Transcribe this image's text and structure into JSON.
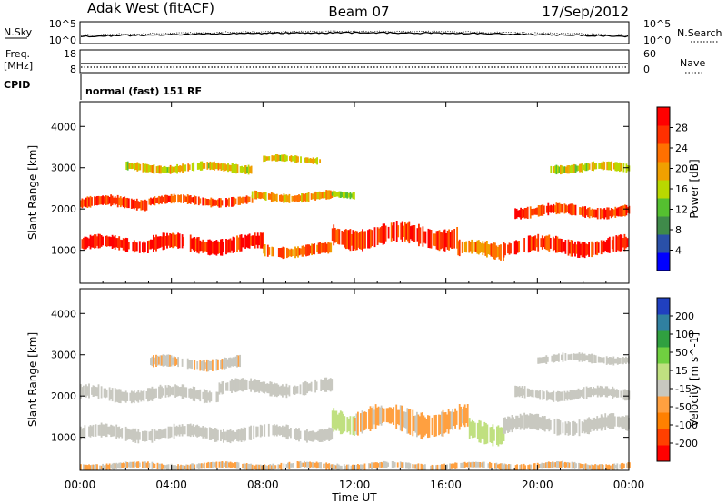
{
  "header": {
    "station": "Adak West (fitACF)",
    "beam": "Beam 07",
    "date": "17/Sep/2012"
  },
  "top_panels": {
    "nsky_label": "N.Sky",
    "nsky_ticks": [
      "10^5",
      "10^0"
    ],
    "nsearch_label": "N.Search",
    "freq_label": "Freq.",
    "freq_unit": "[MHz]",
    "freq_ticks": [
      "18",
      "8"
    ],
    "nave_label": "Nave",
    "nave_ticks": [
      "60",
      "0"
    ],
    "cpid_label": "CPID",
    "cpid_value": "normal (fast) 151 RF"
  },
  "colors": {
    "power_scale": [
      "#0000ff",
      "#2a50a8",
      "#3f8a4a",
      "#55c030",
      "#b9d800",
      "#f0a000",
      "#ff7000",
      "#ff3000",
      "#ff0000"
    ],
    "velocity_scale": [
      "#ff0000",
      "#ff4000",
      "#ff8000",
      "#ffa040",
      "#c8c8c0",
      "#c0e080",
      "#70d040",
      "#30a040",
      "#3080a0",
      "#2040c0"
    ],
    "ground_scatter": "#c8c8c0"
  },
  "chart_data": [
    {
      "type": "heatmap",
      "title": "Power",
      "xlabel": "Time UT",
      "ylabel": "Slant Range [km]",
      "x_ticks": [
        "00:00",
        "04:00",
        "08:00",
        "12:00",
        "16:00",
        "20:00",
        "00:00"
      ],
      "xlim": [
        0,
        24
      ],
      "y_ticks": [
        "1000",
        "2000",
        "3000",
        "4000"
      ],
      "ylim": [
        200,
        4600
      ],
      "colorbar": {
        "label": "Power [dB]",
        "ticks": [
          "4",
          "8",
          "12",
          "16",
          "20",
          "24",
          "28"
        ],
        "range": [
          0,
          32
        ]
      },
      "bands": [
        {
          "start": 0,
          "end": 3,
          "center": 1150,
          "width": 300,
          "value": 29
        },
        {
          "start": 3,
          "end": 8,
          "center": 1150,
          "width": 350,
          "value": 28
        },
        {
          "start": 8,
          "end": 11,
          "center": 1000,
          "width": 250,
          "value": 24
        },
        {
          "start": 11,
          "end": 16.5,
          "center": 1350,
          "width": 450,
          "value": 27
        },
        {
          "start": 16.5,
          "end": 18.5,
          "center": 1000,
          "width": 350,
          "value": 22
        },
        {
          "start": 18.5,
          "end": 24,
          "center": 1100,
          "width": 350,
          "value": 28
        },
        {
          "start": 0,
          "end": 3,
          "center": 2150,
          "width": 250,
          "value": 26
        },
        {
          "start": 3,
          "end": 7.5,
          "center": 2200,
          "width": 200,
          "value": 26
        },
        {
          "start": 7.5,
          "end": 11,
          "center": 2300,
          "width": 200,
          "value": 20
        },
        {
          "start": 11,
          "end": 12,
          "center": 2350,
          "width": 150,
          "value": 14
        },
        {
          "start": 19,
          "end": 24,
          "center": 1950,
          "width": 250,
          "value": 26
        },
        {
          "start": 2,
          "end": 7.5,
          "center": 3000,
          "width": 200,
          "value": 18
        },
        {
          "start": 8,
          "end": 10.5,
          "center": 3200,
          "width": 150,
          "value": 18
        },
        {
          "start": 20.5,
          "end": 24,
          "center": 3000,
          "width": 200,
          "value": 16
        }
      ]
    },
    {
      "type": "heatmap",
      "title": "Velocity",
      "xlabel": "Time UT",
      "ylabel": "Slant Range [km]",
      "x_ticks": [
        "00:00",
        "04:00",
        "08:00",
        "12:00",
        "16:00",
        "20:00",
        "00:00"
      ],
      "xlim": [
        0,
        24
      ],
      "y_ticks": [
        "1000",
        "2000",
        "3000",
        "4000"
      ],
      "ylim": [
        200,
        4600
      ],
      "colorbar": {
        "label": "Velocity [m s^-1]",
        "ticks": [
          "200",
          "100",
          "50",
          "15",
          "-15",
          "-50",
          "-100",
          "-200"
        ],
        "range": [
          -250,
          250
        ]
      },
      "bands": [
        {
          "start": 0,
          "end": 11,
          "center": 1100,
          "width": 300,
          "value": 0
        },
        {
          "start": 0,
          "end": 6,
          "center": 2050,
          "width": 300,
          "value": 0
        },
        {
          "start": 6,
          "end": 11,
          "center": 2200,
          "width": 300,
          "value": 0
        },
        {
          "start": 11,
          "end": 12,
          "center": 1400,
          "width": 500,
          "value": 20
        },
        {
          "start": 12,
          "end": 17,
          "center": 1400,
          "width": 550,
          "value": -60
        },
        {
          "start": 17,
          "end": 18.5,
          "center": 1150,
          "width": 450,
          "value": 25
        },
        {
          "start": 18.5,
          "end": 24,
          "center": 1300,
          "width": 350,
          "value": 0
        },
        {
          "start": 19,
          "end": 24,
          "center": 2050,
          "width": 250,
          "value": 0
        },
        {
          "start": 3,
          "end": 7,
          "center": 2800,
          "width": 250,
          "value": -40
        },
        {
          "start": 20,
          "end": 24,
          "center": 2900,
          "width": 200,
          "value": 0
        },
        {
          "start": 0,
          "end": 24,
          "center": 300,
          "width": 150,
          "value": -50
        }
      ]
    }
  ]
}
